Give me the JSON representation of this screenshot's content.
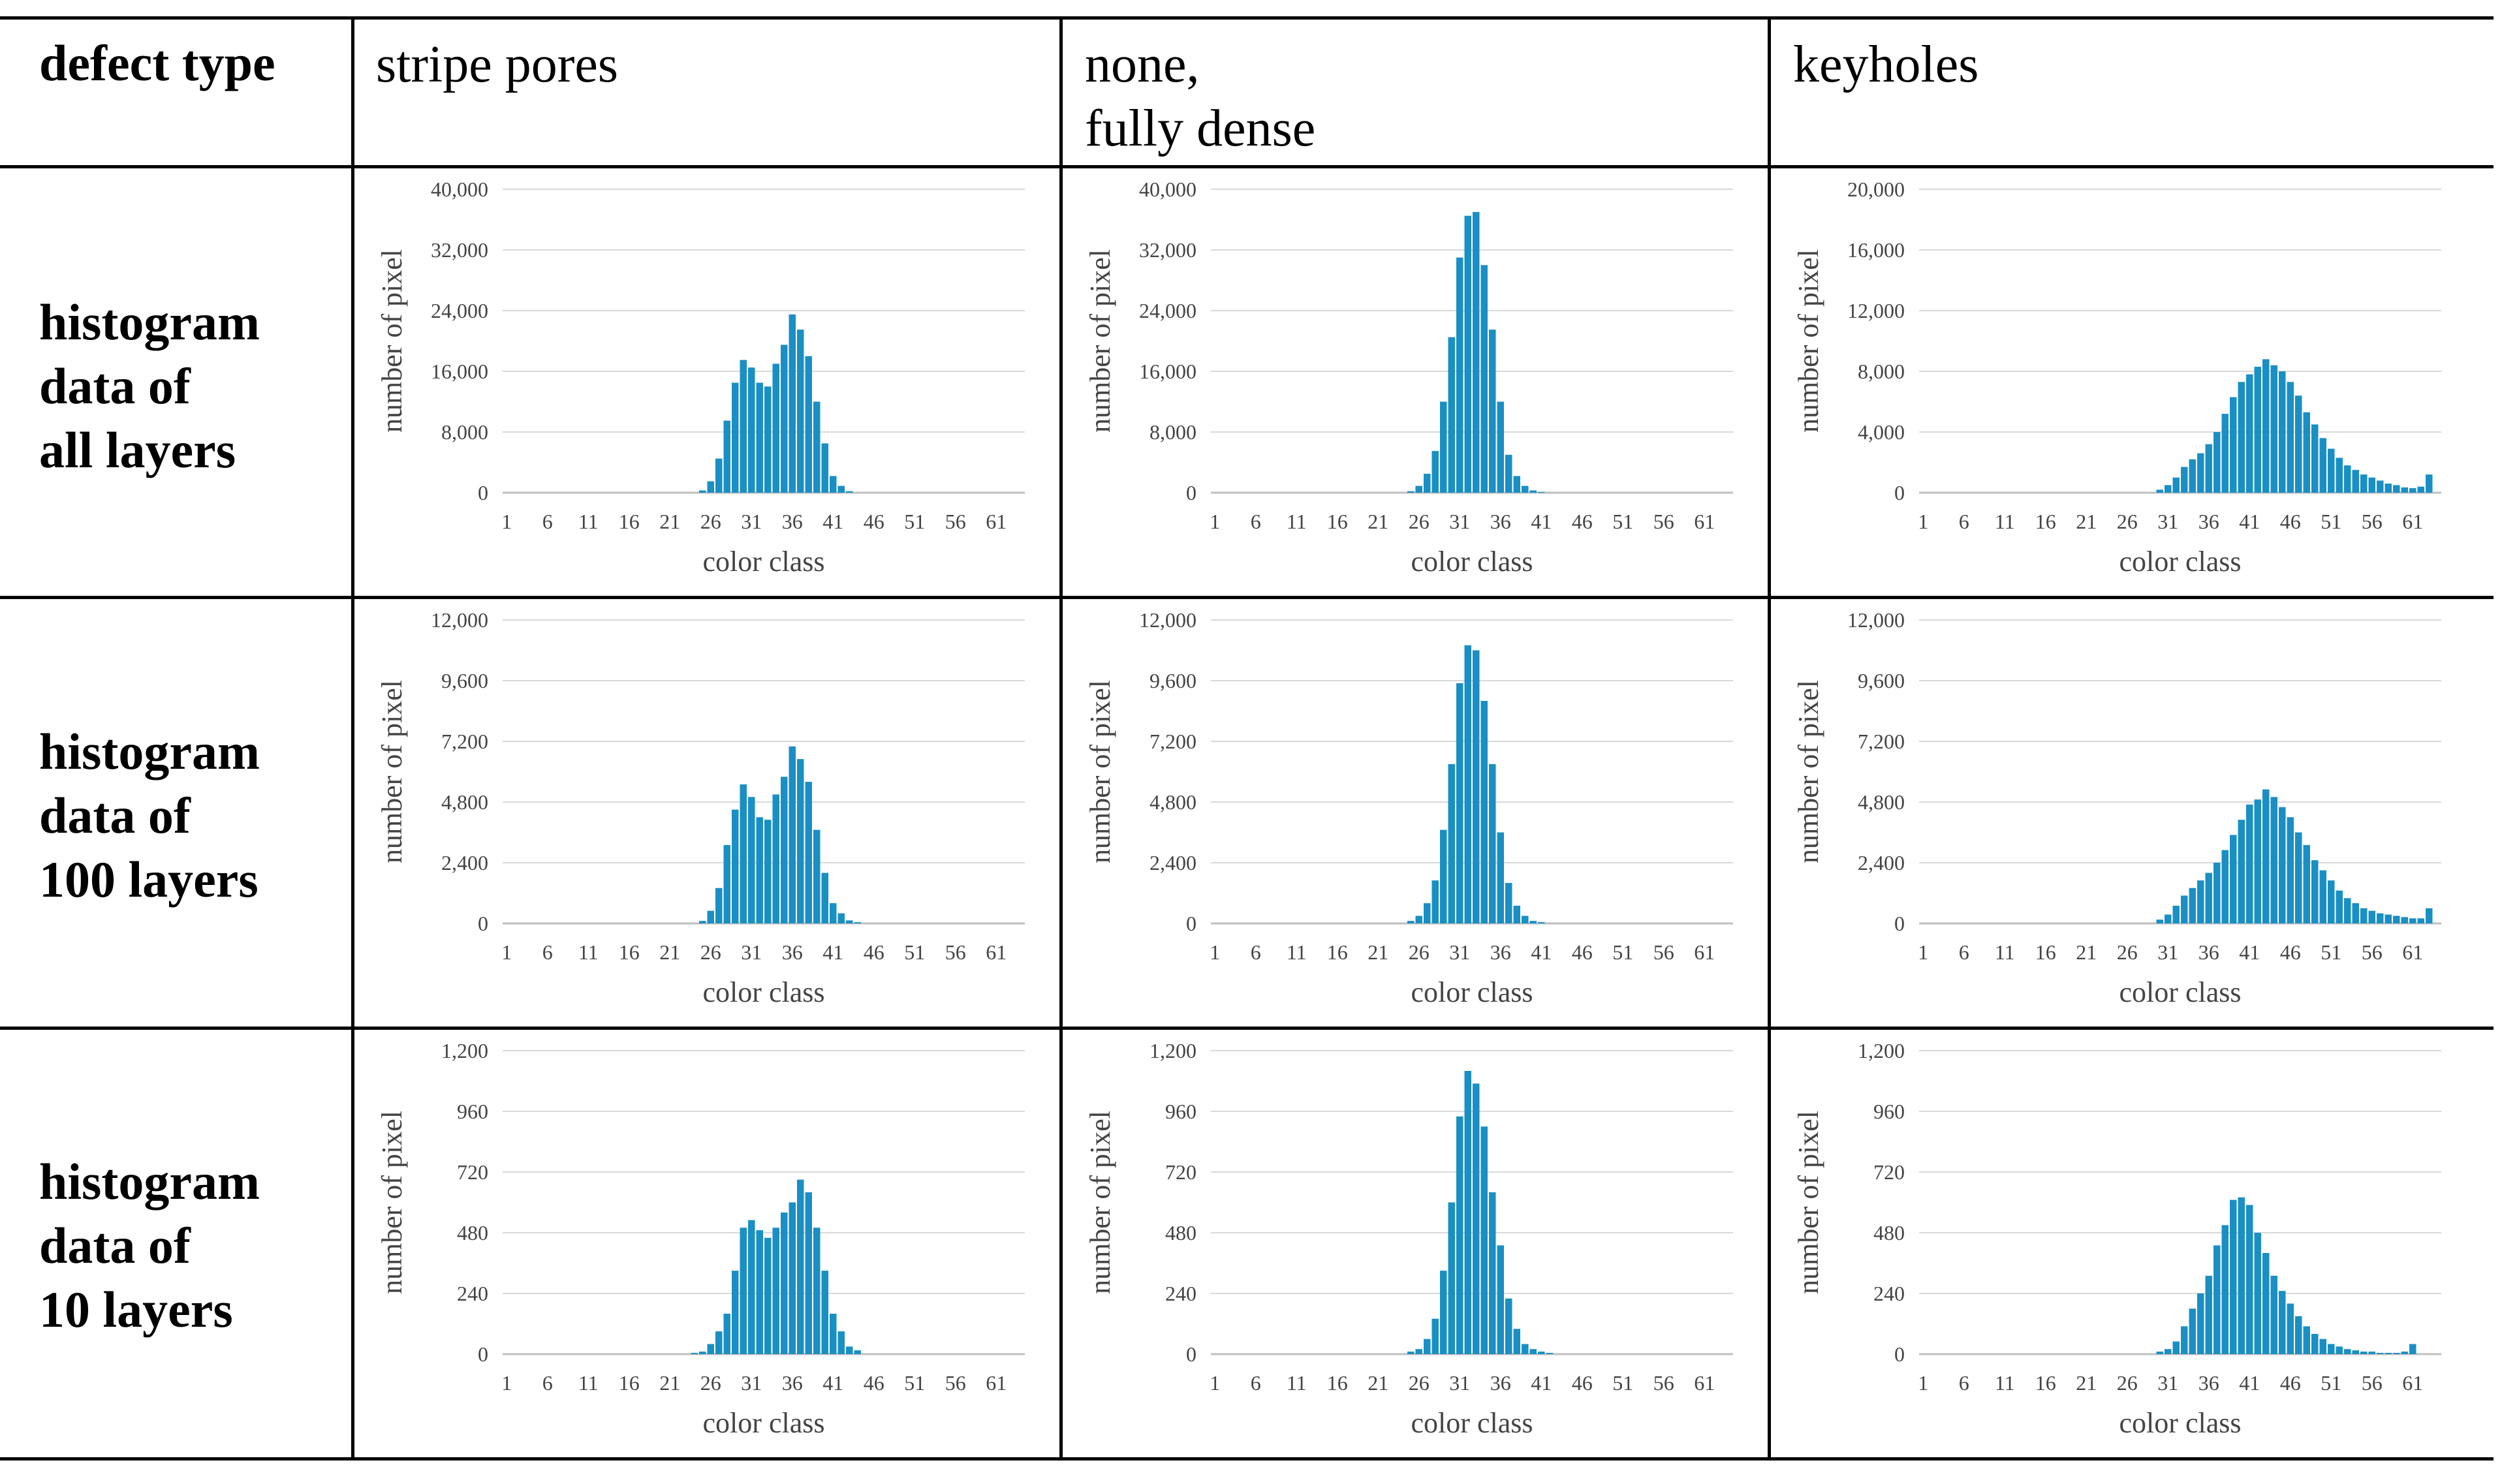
{
  "table": {
    "header_label": "defect type",
    "columns": [
      "stripe pores",
      "none,\nfully dense",
      "keyholes"
    ],
    "rows": [
      {
        "lines": [
          "histogram",
          "data of",
          "all layers"
        ]
      },
      {
        "lines": [
          "histogram",
          "data of",
          "100 layers"
        ]
      },
      {
        "lines": [
          "histogram",
          "data of",
          "10 layers"
        ]
      }
    ]
  },
  "style": {
    "bar_color": "#1a8fc4",
    "grid_color": "#d9d9d9",
    "axis_color": "#bfbfbf"
  },
  "chart_data": [
    {
      "type": "bar",
      "title": "stripe pores — histogram data of all layers",
      "xlabel": "color class",
      "ylabel": "number of pixel",
      "ylim": [
        0,
        40000
      ],
      "yticks": [
        "0",
        "8,000",
        "16,000",
        "24,000",
        "32,000",
        "40,000"
      ],
      "xticks": [
        "1",
        "6",
        "11",
        "16",
        "21",
        "26",
        "31",
        "36",
        "41",
        "46",
        "51",
        "56",
        "61"
      ],
      "x_start": 1,
      "values": [
        0,
        0,
        0,
        0,
        0,
        0,
        0,
        0,
        0,
        0,
        0,
        0,
        0,
        0,
        0,
        0,
        0,
        0,
        0,
        0,
        0,
        0,
        0,
        0,
        300,
        1500,
        4500,
        9500,
        14500,
        17500,
        16500,
        14500,
        14000,
        17000,
        19500,
        23500,
        21500,
        18000,
        12000,
        6500,
        2200,
        900,
        200,
        0,
        0,
        0,
        0,
        0,
        0,
        0,
        0,
        0,
        0,
        0,
        0,
        0,
        0,
        0,
        0,
        0,
        0,
        0,
        0,
        0
      ]
    },
    {
      "type": "bar",
      "title": "none, fully dense — histogram data of all layers",
      "xlabel": "color class",
      "ylabel": "number of pixel",
      "ylim": [
        0,
        40000
      ],
      "yticks": [
        "0",
        "8,000",
        "16,000",
        "24,000",
        "32,000",
        "40,000"
      ],
      "xticks": [
        "1",
        "6",
        "11",
        "16",
        "21",
        "26",
        "31",
        "36",
        "41",
        "46",
        "51",
        "56",
        "61"
      ],
      "x_start": 1,
      "values": [
        0,
        0,
        0,
        0,
        0,
        0,
        0,
        0,
        0,
        0,
        0,
        0,
        0,
        0,
        0,
        0,
        0,
        0,
        0,
        0,
        0,
        0,
        0,
        0,
        200,
        900,
        2500,
        5500,
        12000,
        20500,
        31000,
        36500,
        37000,
        30000,
        21500,
        12000,
        5000,
        2200,
        900,
        300,
        100,
        0,
        0,
        0,
        0,
        0,
        0,
        0,
        0,
        0,
        0,
        0,
        0,
        0,
        0,
        0,
        0,
        0,
        0,
        0,
        0,
        0,
        0,
        0
      ]
    },
    {
      "type": "bar",
      "title": "keyholes — histogram data of all layers",
      "xlabel": "color class",
      "ylabel": "number of pixel",
      "ylim": [
        0,
        20000
      ],
      "yticks": [
        "0",
        "4,000",
        "8,000",
        "12,000",
        "16,000",
        "20,000"
      ],
      "xticks": [
        "1",
        "6",
        "11",
        "16",
        "21",
        "26",
        "31",
        "36",
        "41",
        "46",
        "51",
        "56",
        "61"
      ],
      "x_start": 1,
      "values": [
        0,
        0,
        0,
        0,
        0,
        0,
        0,
        0,
        0,
        0,
        0,
        0,
        0,
        0,
        0,
        0,
        0,
        0,
        0,
        0,
        0,
        0,
        0,
        0,
        0,
        0,
        0,
        0,
        0,
        200,
        500,
        1000,
        1700,
        2200,
        2600,
        3200,
        4000,
        5200,
        6300,
        7300,
        7800,
        8300,
        8800,
        8400,
        8000,
        7300,
        6400,
        5300,
        4500,
        3600,
        2900,
        2300,
        1800,
        1500,
        1200,
        1000,
        800,
        600,
        500,
        350,
        300,
        400,
        1200
      ]
    },
    {
      "type": "bar",
      "title": "stripe pores — histogram data of 100 layers",
      "xlabel": "color class",
      "ylabel": "number of pixel",
      "ylim": [
        0,
        12000
      ],
      "yticks": [
        "0",
        "2,400",
        "4,800",
        "7,200",
        "9,600",
        "12,000"
      ],
      "xticks": [
        "1",
        "6",
        "11",
        "16",
        "21",
        "26",
        "31",
        "36",
        "41",
        "46",
        "51",
        "56",
        "61"
      ],
      "x_start": 1,
      "values": [
        0,
        0,
        0,
        0,
        0,
        0,
        0,
        0,
        0,
        0,
        0,
        0,
        0,
        0,
        0,
        0,
        0,
        0,
        0,
        0,
        0,
        0,
        0,
        0,
        100,
        500,
        1400,
        3100,
        4500,
        5500,
        5000,
        4200,
        4100,
        5100,
        5800,
        7000,
        6500,
        5600,
        3700,
        2000,
        800,
        400,
        120,
        50,
        0,
        0,
        0,
        0,
        0,
        0,
        0,
        0,
        0,
        0,
        0,
        0,
        0,
        0,
        0,
        0,
        0,
        0,
        0,
        0
      ]
    },
    {
      "type": "bar",
      "title": "none, fully dense — histogram data of 100 layers",
      "xlabel": "color class",
      "ylabel": "number of pixel",
      "ylim": [
        0,
        12000
      ],
      "yticks": [
        "0",
        "2,400",
        "4,800",
        "7,200",
        "9,600",
        "12,000"
      ],
      "xticks": [
        "1",
        "6",
        "11",
        "16",
        "21",
        "26",
        "31",
        "36",
        "41",
        "46",
        "51",
        "56",
        "61"
      ],
      "x_start": 1,
      "values": [
        0,
        0,
        0,
        0,
        0,
        0,
        0,
        0,
        0,
        0,
        0,
        0,
        0,
        0,
        0,
        0,
        0,
        0,
        0,
        0,
        0,
        0,
        0,
        0,
        100,
        300,
        800,
        1700,
        3700,
        6300,
        9500,
        11000,
        10800,
        8800,
        6300,
        3600,
        1600,
        700,
        300,
        100,
        50,
        0,
        0,
        0,
        0,
        0,
        0,
        0,
        0,
        0,
        0,
        0,
        0,
        0,
        0,
        0,
        0,
        0,
        0,
        0,
        0,
        0,
        0,
        0
      ]
    },
    {
      "type": "bar",
      "title": "keyholes — histogram data of 100 layers",
      "xlabel": "color class",
      "ylabel": "number of pixel",
      "ylim": [
        0,
        12000
      ],
      "yticks": [
        "0",
        "2,400",
        "4,800",
        "7,200",
        "9,600",
        "12,000"
      ],
      "xticks": [
        "1",
        "6",
        "11",
        "16",
        "21",
        "26",
        "31",
        "36",
        "41",
        "46",
        "51",
        "56",
        "61"
      ],
      "x_start": 1,
      "values": [
        0,
        0,
        0,
        0,
        0,
        0,
        0,
        0,
        0,
        0,
        0,
        0,
        0,
        0,
        0,
        0,
        0,
        0,
        0,
        0,
        0,
        0,
        0,
        0,
        0,
        0,
        0,
        0,
        0,
        150,
        350,
        700,
        1100,
        1400,
        1700,
        2000,
        2400,
        2900,
        3500,
        4100,
        4700,
        4900,
        5300,
        5000,
        4600,
        4200,
        3600,
        3100,
        2500,
        2100,
        1700,
        1300,
        1000,
        800,
        600,
        500,
        400,
        350,
        300,
        250,
        200,
        200,
        600
      ]
    },
    {
      "type": "bar",
      "title": "stripe pores — histogram data of 10 layers",
      "xlabel": "color class",
      "ylabel": "number of pixel",
      "ylim": [
        0,
        1200
      ],
      "yticks": [
        "0",
        "240",
        "480",
        "720",
        "960",
        "1,200"
      ],
      "xticks": [
        "1",
        "6",
        "11",
        "16",
        "21",
        "26",
        "31",
        "36",
        "41",
        "46",
        "51",
        "56",
        "61"
      ],
      "x_start": 1,
      "values": [
        0,
        0,
        0,
        0,
        0,
        0,
        0,
        0,
        0,
        0,
        0,
        0,
        0,
        0,
        0,
        0,
        0,
        0,
        0,
        0,
        0,
        0,
        0,
        5,
        10,
        40,
        90,
        160,
        330,
        500,
        530,
        490,
        460,
        500,
        560,
        600,
        690,
        640,
        500,
        330,
        160,
        90,
        30,
        15,
        0,
        0,
        0,
        0,
        0,
        0,
        0,
        0,
        0,
        0,
        0,
        0,
        0,
        0,
        0,
        0,
        0,
        0,
        0,
        0
      ]
    },
    {
      "type": "bar",
      "title": "none, fully dense — histogram data of 10 layers",
      "xlabel": "color class",
      "ylabel": "number of pixel",
      "ylim": [
        0,
        1200
      ],
      "yticks": [
        "0",
        "240",
        "480",
        "720",
        "960",
        "1,200"
      ],
      "xticks": [
        "1",
        "6",
        "11",
        "16",
        "21",
        "26",
        "31",
        "36",
        "41",
        "46",
        "51",
        "56",
        "61"
      ],
      "x_start": 1,
      "values": [
        0,
        0,
        0,
        0,
        0,
        0,
        0,
        0,
        0,
        0,
        0,
        0,
        0,
        0,
        0,
        0,
        0,
        0,
        0,
        0,
        0,
        0,
        0,
        0,
        10,
        20,
        60,
        140,
        330,
        600,
        940,
        1120,
        1070,
        900,
        640,
        430,
        220,
        100,
        40,
        20,
        10,
        5,
        0,
        0,
        0,
        0,
        0,
        0,
        0,
        0,
        0,
        0,
        0,
        0,
        0,
        0,
        0,
        0,
        0,
        0,
        0,
        0,
        0,
        0
      ]
    },
    {
      "type": "bar",
      "title": "keyholes — histogram data of 10 layers",
      "xlabel": "color class",
      "ylabel": "number of pixel",
      "ylim": [
        0,
        1200
      ],
      "yticks": [
        "0",
        "240",
        "480",
        "720",
        "960",
        "1,200"
      ],
      "xticks": [
        "1",
        "6",
        "11",
        "16",
        "21",
        "26",
        "31",
        "36",
        "41",
        "46",
        "51",
        "56",
        "61"
      ],
      "x_start": 1,
      "values": [
        0,
        0,
        0,
        0,
        0,
        0,
        0,
        0,
        0,
        0,
        0,
        0,
        0,
        0,
        0,
        0,
        0,
        0,
        0,
        0,
        0,
        0,
        0,
        0,
        0,
        0,
        0,
        0,
        0,
        10,
        20,
        50,
        110,
        180,
        240,
        310,
        430,
        510,
        610,
        620,
        590,
        480,
        400,
        310,
        250,
        200,
        150,
        110,
        80,
        60,
        40,
        30,
        20,
        15,
        10,
        10,
        5,
        5,
        5,
        10,
        40,
        0,
        0
      ]
    }
  ]
}
